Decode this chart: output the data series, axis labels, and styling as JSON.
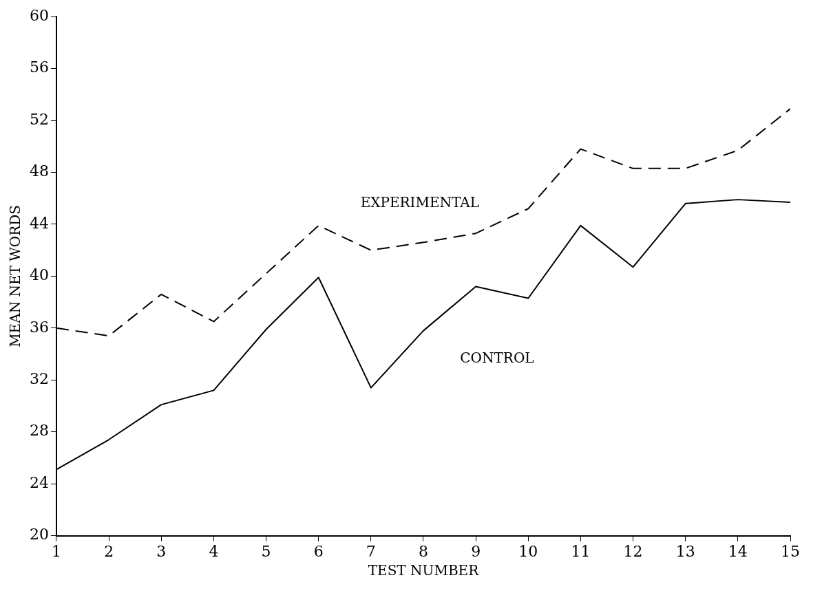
{
  "chart_data": {
    "type": "line",
    "xlabel": "TEST NUMBER",
    "ylabel": "MEAN NET WORDS",
    "x": [
      1,
      2,
      3,
      4,
      5,
      6,
      7,
      8,
      9,
      10,
      11,
      12,
      13,
      14,
      15
    ],
    "series": [
      {
        "name": "EXPERIMENTAL",
        "color": "#000000",
        "line_style": "dashed",
        "values": [
          36.0,
          35.4,
          38.6,
          36.5,
          40.2,
          43.9,
          42.0,
          42.6,
          43.3,
          45.2,
          49.8,
          48.3,
          48.3,
          49.7,
          52.9
        ]
      },
      {
        "name": "CONTROL",
        "color": "#000000",
        "line_style": "solid",
        "values": [
          25.1,
          27.4,
          30.1,
          31.2,
          35.9,
          39.9,
          31.4,
          35.8,
          39.2,
          38.3,
          43.9,
          40.7,
          45.6,
          45.9,
          45.7
        ]
      }
    ],
    "xlim": [
      1,
      15
    ],
    "xticks": [
      1,
      2,
      3,
      4,
      5,
      6,
      7,
      8,
      9,
      10,
      11,
      12,
      13,
      14,
      15
    ],
    "ylim": [
      20,
      60
    ],
    "yticks": [
      20,
      24,
      28,
      32,
      36,
      40,
      44,
      48,
      52,
      56,
      60
    ],
    "grid": false,
    "legend": false,
    "marker": "none"
  }
}
